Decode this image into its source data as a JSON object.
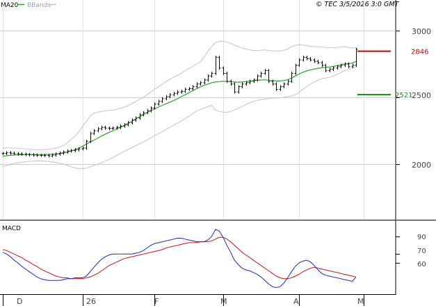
{
  "header": {
    "ma_legend": "MA20",
    "bb_legend": "BBands",
    "source": "© TEC 3/5/2026 3:0 GMT"
  },
  "macd_label": "MACD",
  "colors": {
    "ma": "#22aa22",
    "bbands": "#c4c4c4",
    "price": "#000000",
    "resistance": "#cc0000",
    "support": "#119911",
    "macd_line": "#2222cc",
    "signal_line": "#cc1111",
    "grid": "#cfcfcf"
  },
  "chart_data": [
    {
      "type": "ohlc",
      "title": "",
      "y_ticks": [
        {
          "value": 3000,
          "label": "3000"
        },
        {
          "value": 2500,
          "label": "2500"
        },
        {
          "value": 2000,
          "label": "2000"
        }
      ],
      "ylim": [
        1700,
        3050
      ],
      "x_ticks": [
        {
          "index": 0,
          "label": "D"
        },
        {
          "index": 21,
          "label": "26"
        },
        {
          "index": 40,
          "label": "F"
        },
        {
          "index": 58,
          "label": "M"
        },
        {
          "index": 78,
          "label": "A"
        },
        {
          "index": 95,
          "label": "M"
        }
      ],
      "close": [
        2080,
        2085,
        2082,
        2078,
        2076,
        2074,
        2072,
        2070,
        2068,
        2066,
        2066,
        2065,
        2062,
        2068,
        2075,
        2082,
        2090,
        2098,
        2102,
        2108,
        2115,
        2120,
        2170,
        2230,
        2250,
        2265,
        2275,
        2270,
        2268,
        2270,
        2275,
        2285,
        2295,
        2310,
        2330,
        2345,
        2370,
        2385,
        2400,
        2420,
        2450,
        2470,
        2490,
        2505,
        2520,
        2530,
        2540,
        2545,
        2560,
        2565,
        2580,
        2600,
        2610,
        2630,
        2660,
        2680,
        2800,
        2720,
        2680,
        2620,
        2600,
        2540,
        2580,
        2600,
        2610,
        2620,
        2630,
        2660,
        2680,
        2700,
        2620,
        2600,
        2560,
        2580,
        2600,
        2620,
        2680,
        2740,
        2780,
        2800,
        2790,
        2780,
        2770,
        2760,
        2740,
        2700,
        2710,
        2720,
        2730,
        2740,
        2750,
        2730,
        2740,
        2860
      ],
      "ma20": [
        2060,
        2063,
        2066,
        2068,
        2070,
        2071,
        2072,
        2072,
        2072,
        2071,
        2071,
        2072,
        2073,
        2075,
        2077,
        2080,
        2084,
        2090,
        2098,
        2108,
        2120,
        2135,
        2150,
        2165,
        2180,
        2195,
        2210,
        2225,
        2238,
        2250,
        2262,
        2276,
        2290,
        2306,
        2322,
        2338,
        2354,
        2370,
        2386,
        2400,
        2414,
        2428,
        2440,
        2452,
        2464,
        2476,
        2490,
        2505,
        2520,
        2535,
        2550,
        2565,
        2578,
        2590,
        2600,
        2610,
        2615,
        2618,
        2620,
        2620,
        2618,
        2615,
        2614,
        2615,
        2618,
        2622,
        2625,
        2628,
        2630,
        2632,
        2628,
        2625,
        2623,
        2623,
        2626,
        2632,
        2645,
        2660,
        2675,
        2688,
        2698,
        2706,
        2712,
        2718,
        2722,
        2725,
        2728,
        2732,
        2737,
        2742,
        2750,
        2752,
        2756,
        2770
      ],
      "bb_upper": [
        2120,
        2122,
        2122,
        2120,
        2118,
        2116,
        2114,
        2112,
        2110,
        2108,
        2108,
        2110,
        2112,
        2115,
        2120,
        2127,
        2140,
        2160,
        2185,
        2210,
        2240,
        2280,
        2320,
        2360,
        2380,
        2390,
        2395,
        2400,
        2402,
        2405,
        2410,
        2418,
        2426,
        2440,
        2452,
        2468,
        2485,
        2500,
        2520,
        2540,
        2560,
        2580,
        2600,
        2618,
        2636,
        2650,
        2665,
        2680,
        2700,
        2715,
        2732,
        2750,
        2765,
        2800,
        2845,
        2880,
        2910,
        2920,
        2920,
        2915,
        2905,
        2890,
        2880,
        2870,
        2862,
        2855,
        2850,
        2850,
        2852,
        2855,
        2850,
        2848,
        2848,
        2848,
        2852,
        2862,
        2880,
        2890,
        2894,
        2892,
        2888,
        2882,
        2880,
        2878,
        2876,
        2874,
        2872,
        2872,
        2874,
        2876,
        2880,
        2874,
        2870,
        2872
      ],
      "bb_lower": [
        1980,
        1990,
        2000,
        2006,
        2010,
        2014,
        2018,
        2020,
        2022,
        2024,
        2024,
        2022,
        2020,
        2016,
        2012,
        2006,
        2000,
        1990,
        1980,
        1972,
        1968,
        1966,
        1970,
        1980,
        1990,
        2000,
        2010,
        2022,
        2035,
        2050,
        2065,
        2080,
        2095,
        2110,
        2124,
        2138,
        2152,
        2166,
        2180,
        2196,
        2212,
        2228,
        2244,
        2260,
        2276,
        2292,
        2308,
        2324,
        2340,
        2360,
        2378,
        2396,
        2410,
        2420,
        2430,
        2440,
        2405,
        2395,
        2390,
        2388,
        2395,
        2405,
        2420,
        2432,
        2445,
        2460,
        2470,
        2478,
        2484,
        2487,
        2490,
        2495,
        2495,
        2497,
        2500,
        2505,
        2510,
        2520,
        2538,
        2560,
        2580,
        2600,
        2615,
        2628,
        2640,
        2645,
        2650,
        2660,
        2672,
        2686,
        2700,
        2710,
        2720,
        2730
      ],
      "levels": [
        {
          "value": 2846,
          "label": "2846",
          "kind": "resistance"
        },
        {
          "value": 2521,
          "label": "2521",
          "kind": "support"
        }
      ]
    },
    {
      "type": "line",
      "title": "MACD",
      "y_ticks": [
        {
          "value": 90,
          "label": "90"
        },
        {
          "value": 70,
          "label": "70"
        },
        {
          "value": 60,
          "label": "60"
        }
      ],
      "ylim": [
        30,
        100
      ],
      "series": [
        {
          "values": [
            72,
            70,
            67,
            63,
            60,
            56,
            53,
            50,
            47,
            44,
            42,
            41,
            40,
            40,
            40,
            40,
            41,
            42,
            42,
            43,
            43,
            43,
            45,
            50,
            55,
            60,
            64,
            67,
            69,
            70,
            70,
            70,
            70,
            70,
            70,
            71,
            72,
            74,
            77,
            80,
            82,
            83,
            84,
            85,
            86,
            87,
            88,
            88,
            87,
            86,
            85,
            84,
            84,
            84,
            86,
            90,
            98,
            96,
            89,
            80,
            72,
            63,
            58,
            54,
            52,
            51,
            49,
            47,
            44,
            40,
            36,
            33,
            32,
            33,
            37,
            43,
            50,
            56,
            60,
            62,
            63,
            61,
            57,
            52,
            48,
            46,
            45,
            44,
            43,
            42,
            41,
            40,
            39,
            44
          ]
        },
        {
          "values": [
            75,
            74,
            72,
            70,
            68,
            66,
            63,
            61,
            58,
            56,
            53,
            51,
            49,
            47,
            45,
            44,
            43,
            43,
            42,
            42,
            42,
            42,
            43,
            44,
            46,
            48,
            51,
            54,
            57,
            59,
            61,
            63,
            65,
            66,
            67,
            68,
            69,
            70,
            71,
            72,
            73,
            74,
            75,
            77,
            78,
            79,
            80,
            81,
            82,
            83,
            83,
            83,
            84,
            84,
            84,
            85,
            87,
            89,
            89,
            87,
            84,
            80,
            76,
            72,
            69,
            66,
            63,
            60,
            57,
            54,
            51,
            48,
            45,
            43,
            42,
            42,
            43,
            45,
            47,
            50,
            52,
            54,
            55,
            54,
            53,
            52,
            51,
            50,
            49,
            48,
            47,
            46,
            45,
            44
          ]
        }
      ]
    }
  ]
}
